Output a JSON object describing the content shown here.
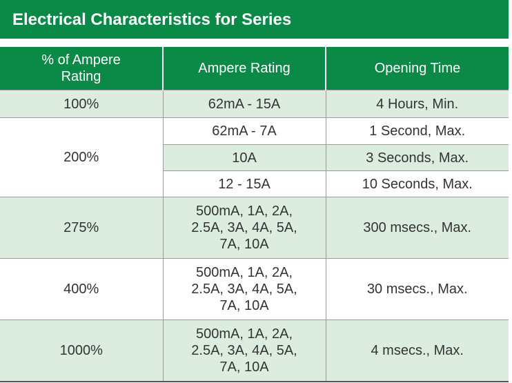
{
  "title": "Electrical Characteristics for Series",
  "table": {
    "header": [
      "% of Ampere\nRating",
      "Ampere Rating",
      "Opening Time"
    ],
    "rows": [
      {
        "rating": "100%",
        "entries": [
          [
            "62mA - 15A",
            "4 Hours, Min."
          ]
        ]
      },
      {
        "rating": "200%",
        "entries": [
          [
            "62mA - 7A",
            "1 Second, Max."
          ],
          [
            "10A",
            "3 Seconds, Max."
          ],
          [
            "12 - 15A",
            "10 Seconds, Max."
          ]
        ]
      },
      {
        "rating": "275%",
        "entries": [
          [
            "500mA, 1A, 2A,\n2.5A, 3A, 4A, 5A,\n7A, 10A",
            "300 msecs., Max."
          ]
        ]
      },
      {
        "rating": "400%",
        "entries": [
          [
            "500mA, 1A, 2A,\n2.5A, 3A, 4A, 5A,\n7A, 10A",
            "30 msecs., Max."
          ]
        ]
      },
      {
        "rating": "1000%",
        "entries": [
          [
            "500mA, 1A, 2A,\n2.5A, 3A, 4A, 5A,\n7A, 10A",
            "4 msecs., Max."
          ]
        ]
      }
    ]
  }
}
